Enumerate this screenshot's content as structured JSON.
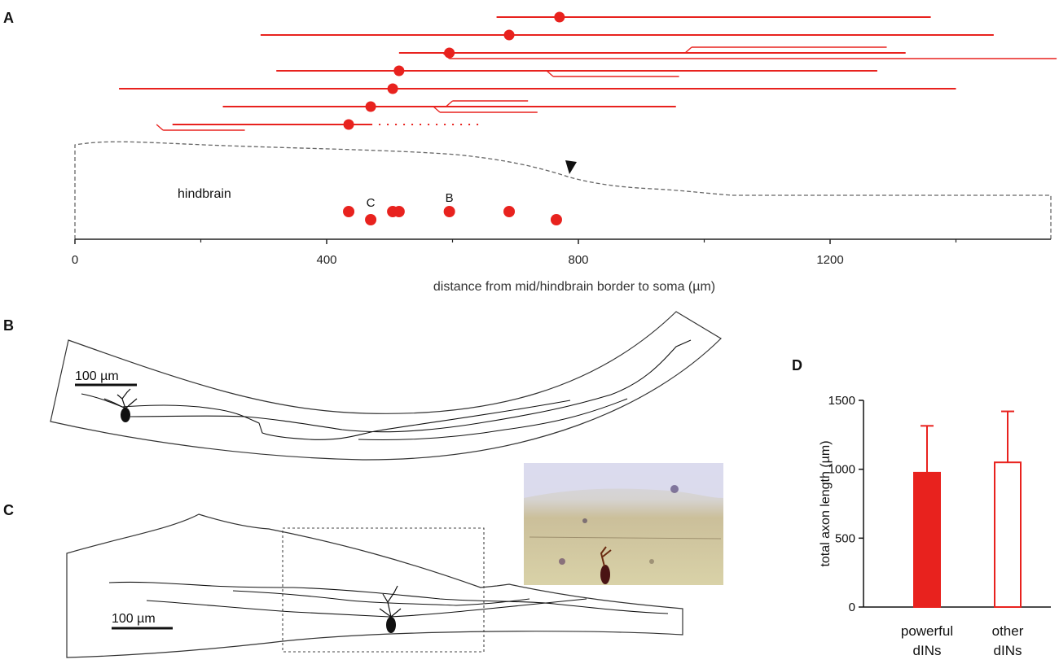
{
  "panel_labels": {
    "a": "A",
    "b": "B",
    "c": "C",
    "d": "D"
  },
  "colors": {
    "red": "#e8221e",
    "black": "#111111",
    "dash": "#666666"
  },
  "chart_data": [
    {
      "panel": "A",
      "type": "scatter",
      "xlabel": "distance from mid/hindbrain border to soma (µm)",
      "xticks": [
        0,
        400,
        800,
        1200
      ],
      "xlim": [
        0,
        1570
      ],
      "region_label": "hindbrain",
      "point_labels": [
        {
          "text": "C",
          "x": 470
        },
        {
          "text": "B",
          "x": 595
        }
      ],
      "somata": [
        {
          "x": 435,
          "level": "upper"
        },
        {
          "x": 470,
          "level": "lower"
        },
        {
          "x": 505,
          "level": "upper"
        },
        {
          "x": 515,
          "level": "upper"
        },
        {
          "x": 595,
          "level": "upper"
        },
        {
          "x": 690,
          "level": "upper"
        },
        {
          "x": 765,
          "level": "lower"
        }
      ],
      "axon_rows": [
        {
          "soma": 770,
          "segments": [
            [
              670,
              1360
            ]
          ]
        },
        {
          "soma": 690,
          "segments": [
            [
              295,
              1460
            ]
          ]
        },
        {
          "soma": 595,
          "segments": [
            [
              515,
              1320
            ],
            [
              595,
              1560
            ],
            [
              980,
              1290
            ]
          ]
        },
        {
          "soma": 515,
          "segments": [
            [
              320,
              1275
            ],
            [
              760,
              960
            ]
          ]
        },
        {
          "soma": 505,
          "segments": [
            [
              70,
              1400
            ]
          ]
        },
        {
          "soma": 470,
          "segments": [
            [
              235,
              955
            ],
            [
              580,
              735
            ],
            [
              600,
              720
            ]
          ]
        },
        {
          "soma": 435,
          "segments": [
            [
              155,
              470
            ],
            [
              140,
              270
            ]
          ],
          "dotted": [
            470,
            645
          ]
        }
      ],
      "arrowhead_x": 800
    },
    {
      "panel": "D",
      "type": "bar",
      "ylabel": "total axon length (µm)",
      "ylim": [
        0,
        1500
      ],
      "yticks": [
        0,
        500,
        1000,
        1500
      ],
      "categories": [
        "powerful dINs",
        "other dINs"
      ],
      "category_lines": [
        [
          "powerful",
          "dINs"
        ],
        [
          "other",
          "dINs"
        ]
      ],
      "values": [
        975,
        1050
      ],
      "error_upper": [
        340,
        370
      ],
      "fill": [
        "solid",
        "open"
      ]
    }
  ],
  "panel_b": {
    "scale_bar": "100 µm"
  },
  "panel_c": {
    "scale_bar": "100 µm"
  }
}
